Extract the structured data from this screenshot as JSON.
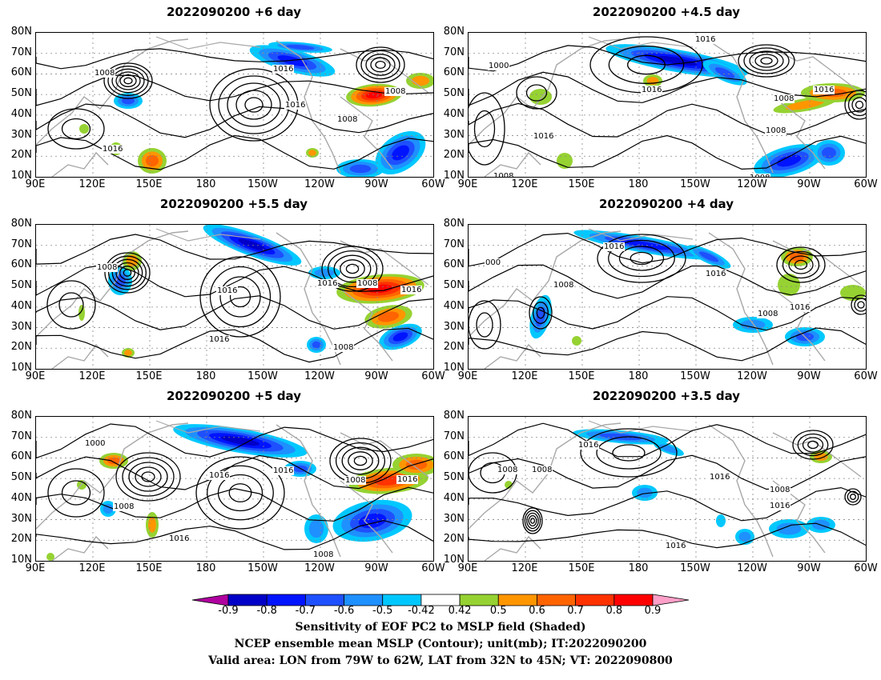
{
  "panels": [
    {
      "title": "2022090200  +6  day"
    },
    {
      "title": "2022090200  +4.5  day"
    },
    {
      "title": "2022090200  +5.5  day"
    },
    {
      "title": "2022090200  +4  day"
    },
    {
      "title": "2022090200  +5  day"
    },
    {
      "title": "2022090200  +3.5  day"
    }
  ],
  "axes": {
    "lat_labels": [
      "80N",
      "70N",
      "60N",
      "50N",
      "40N",
      "30N",
      "20N",
      "10N"
    ],
    "lon_labels": [
      "90E",
      "120E",
      "150E",
      "180",
      "150W",
      "120W",
      "90W",
      "60W"
    ]
  },
  "colorbar": {
    "labels": [
      "-0.9",
      "-0.8",
      "-0.7",
      "-0.6",
      "-0.5",
      "-0.42",
      "0.42",
      "0.5",
      "0.6",
      "0.7",
      "0.8",
      "0.9"
    ],
    "colors": [
      "#b000a0",
      "#0000c8",
      "#0014ff",
      "#1e50ff",
      "#1e90ff",
      "#00c8ff",
      "#ffffff",
      "#96d232",
      "#ff9600",
      "#ff6400",
      "#ff3200",
      "#ff0000",
      "#ffa0c8"
    ]
  },
  "captions": [
    "Sensitivity of EOF PC2 to MSLP field (Shaded)",
    "NCEP ensemble mean MSLP (Contour); unit(mb); IT:2022090200",
    "Valid area: LON from 79W to 62W, LAT from 32N to 45N; VT: 2022090800"
  ],
  "contour_labels": {
    "p0": [
      "1008",
      "1016",
      "1016",
      "1008",
      "1008",
      "1016"
    ],
    "p1": [
      "1016",
      "1000",
      "1016",
      "1008",
      "1016",
      "1008",
      "1016",
      "1008",
      "1008"
    ],
    "p2": [
      "1008",
      "1016",
      "1016",
      "1008",
      "1016",
      "1016",
      "1008"
    ],
    "p3": [
      "1016",
      "000",
      "1008",
      "1016",
      "1008",
      "1016"
    ],
    "p4": [
      "1000",
      "1008",
      "1016",
      "1016",
      "1008",
      "1016",
      "1016",
      "1008"
    ],
    "p5": [
      "1016",
      "1008",
      "1008",
      "1016",
      "1008",
      "1016",
      "1016"
    ]
  }
}
